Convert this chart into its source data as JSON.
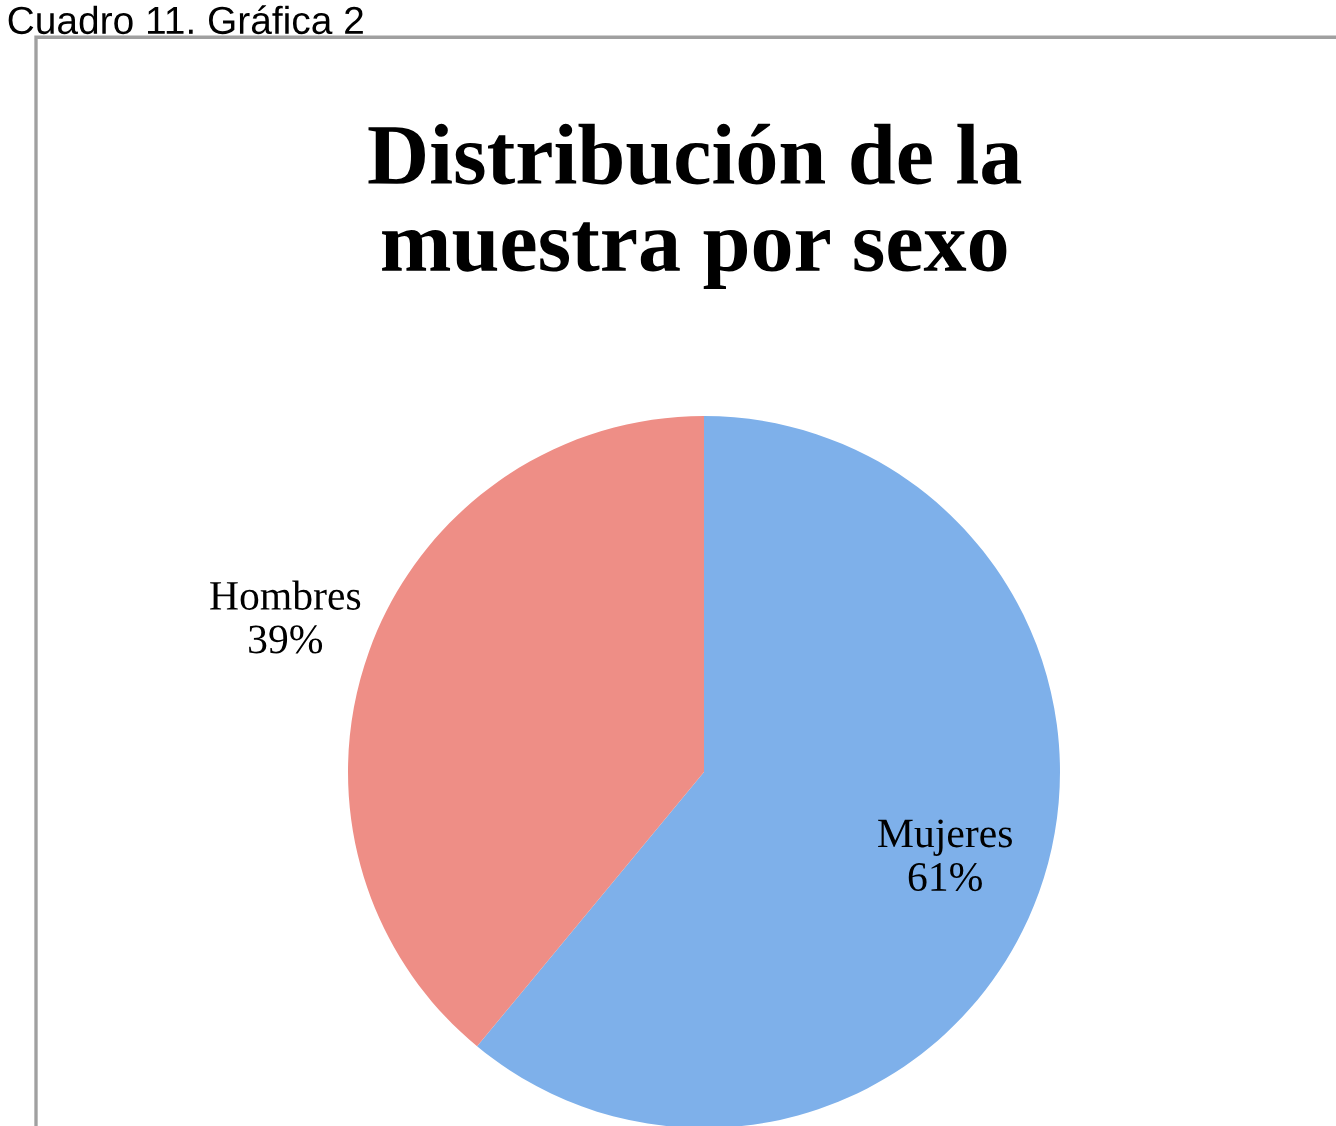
{
  "chart_data": {
    "type": "pie",
    "title": "Distribución de la\nmuestra por sexo",
    "annotations": [
      "Cuadro 11. Gráfica 2"
    ],
    "categories": [
      "Mujeres",
      "Hombres"
    ],
    "values": [
      61,
      39
    ],
    "colors": [
      "#7eb0ea",
      "#ee8e86"
    ],
    "value_labels": [
      "61%",
      "39%"
    ]
  }
}
